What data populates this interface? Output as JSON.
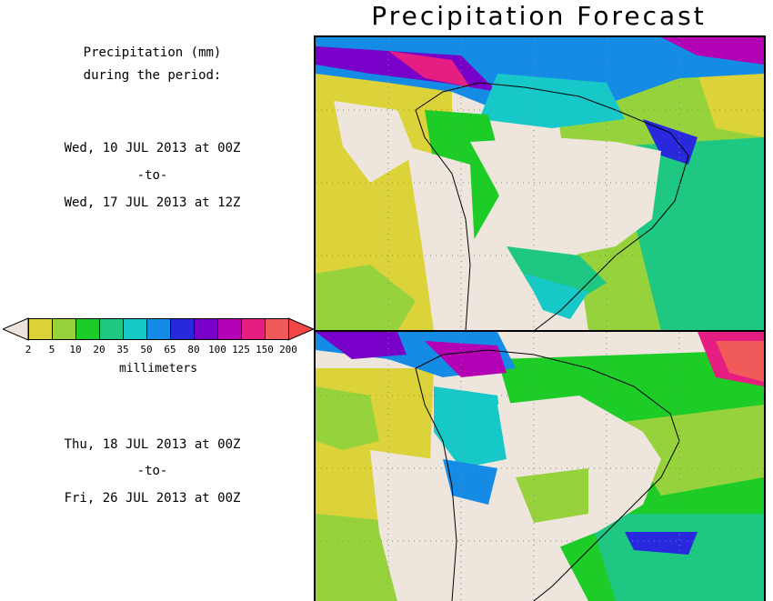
{
  "title": "Precipitation Forecast",
  "left_panel": {
    "heading_line1": "Precipitation (mm)",
    "heading_line2": "during the period:",
    "period1": {
      "start": "Wed, 10 JUL 2013 at 00Z",
      "sep": "-to-",
      "end": "Wed, 17 JUL 2013 at 12Z"
    },
    "period2": {
      "start": "Thu, 18 JUL 2013 at 00Z",
      "sep": "-to-",
      "end": "Fri, 26 JUL 2013 at 00Z"
    }
  },
  "legend": {
    "unit": "millimeters",
    "ticks": [
      "2",
      "5",
      "10",
      "20",
      "35",
      "50",
      "65",
      "80",
      "100",
      "125",
      "150",
      "200"
    ],
    "colors": [
      "#dcd23a",
      "#96d23c",
      "#1ecc28",
      "#1ec882",
      "#16c8c8",
      "#148ce6",
      "#2828dc",
      "#7800c8",
      "#b400b4",
      "#e61e82",
      "#f05a5a"
    ],
    "below_color": "#ece4dc",
    "above_color": "#f04646"
  },
  "maps": [
    {
      "name": "period-1-map"
    },
    {
      "name": "period-2-map"
    }
  ]
}
